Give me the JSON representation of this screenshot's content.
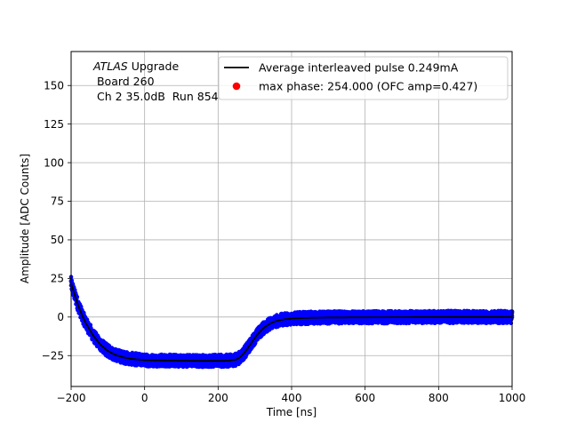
{
  "chart_data": {
    "type": "scatter",
    "title": "",
    "xlabel": "Time [ns]",
    "ylabel": "Amplitude [ADC Counts]",
    "xlim": [
      -200,
      1000
    ],
    "ylim": [
      -45,
      172
    ],
    "grid": true,
    "x_ticks": [
      -200,
      0,
      200,
      400,
      600,
      800,
      1000
    ],
    "y_ticks": [
      -25,
      0,
      25,
      50,
      75,
      100,
      125,
      150
    ],
    "annotation": {
      "atlas": "ATLAS",
      "line1_rest": " Upgrade",
      "line2": " Board 260",
      "line3": " Ch 2 35.0dB  Run 854"
    },
    "legend": {
      "placement": "top-right",
      "entries": [
        {
          "label": "Average interleaved pulse 0.249mA",
          "marker": "line",
          "color": "#000000"
        },
        {
          "label": "max phase: 254.000 (OFC amp=0.427)",
          "marker": "dot",
          "color": "#ff0000"
        }
      ]
    },
    "series": [
      {
        "name": "Average interleaved pulse 0.249mA",
        "kind": "line",
        "color": "#000000",
        "x": [
          -200,
          -190,
          -180,
          -170,
          -160,
          -150,
          -140,
          -120,
          -100,
          -80,
          -60,
          -40,
          -20,
          0,
          50,
          100,
          150,
          200,
          230,
          250,
          260,
          270,
          280,
          290,
          300,
          310,
          320,
          330,
          340,
          350,
          360,
          380,
          400,
          450,
          500,
          600,
          700,
          800,
          900,
          1000
        ],
        "y": [
          22,
          14,
          7,
          1,
          -4,
          -8,
          -12,
          -18,
          -22,
          -24.5,
          -26,
          -27,
          -27.5,
          -28,
          -28.2,
          -28.3,
          -28.4,
          -28.4,
          -28.3,
          -27.5,
          -26,
          -23.5,
          -20.5,
          -17,
          -13.5,
          -10.5,
          -8,
          -6,
          -4.5,
          -3.3,
          -2.5,
          -1.5,
          -1,
          -0.5,
          -0.3,
          -0.2,
          -0.1,
          0,
          0,
          0
        ]
      },
      {
        "name": "",
        "kind": "scatter-band",
        "color": "#0000ff",
        "spread": 4
      }
    ]
  }
}
